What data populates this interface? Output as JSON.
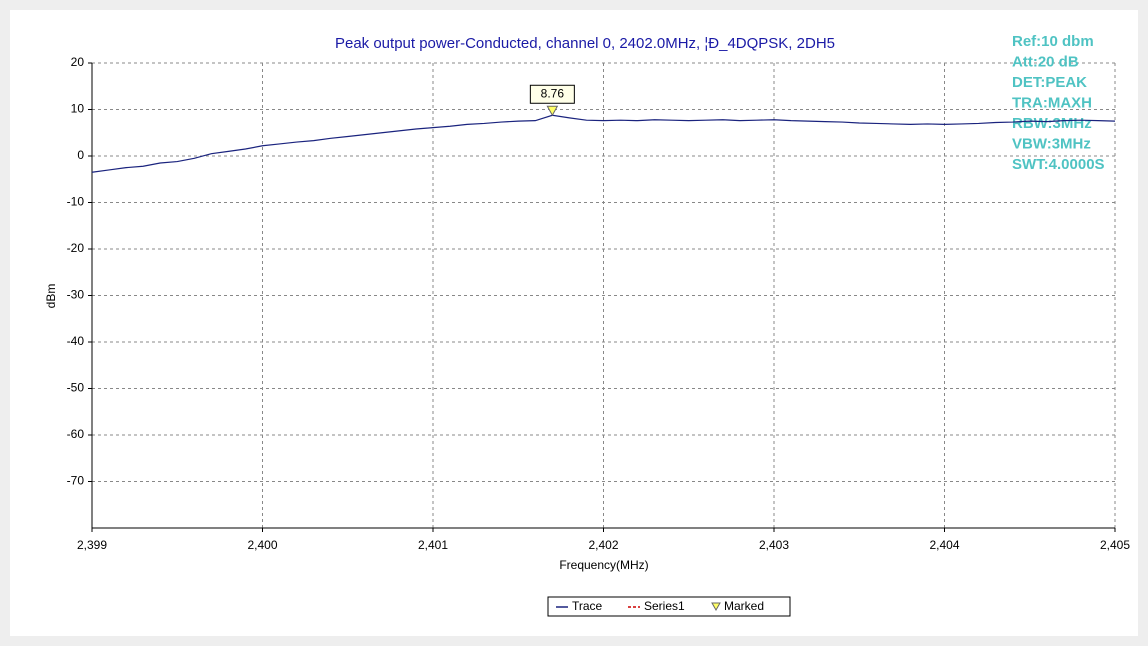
{
  "chart_data": {
    "type": "line",
    "title": "Peak output power-Conducted, channel 0, 2402.0MHz, ¦Ð_4DQPSK, 2DH5",
    "x_label": "Frequency(MHz)",
    "y_label": "dBm",
    "annotations": [
      "Ref:10 dbm",
      "Att:20 dB",
      "DET:PEAK",
      "TRA:MAXH",
      "RBW:3MHz",
      "VBW:3MHz",
      "SWT:4.0000S"
    ],
    "xlim": [
      2399,
      2405
    ],
    "xticks": [
      {
        "value": 2399,
        "label": "2,399"
      },
      {
        "value": 2400,
        "label": "2,400"
      },
      {
        "value": 2401,
        "label": "2,401"
      },
      {
        "value": 2402,
        "label": "2,402"
      },
      {
        "value": 2403,
        "label": "2,403"
      },
      {
        "value": 2404,
        "label": "2,404"
      },
      {
        "value": 2405,
        "label": "2,405"
      }
    ],
    "ylim": [
      -80,
      20
    ],
    "yticks": [
      20,
      10,
      0,
      -10,
      -20,
      -30,
      -40,
      -50,
      -60,
      -70
    ],
    "grid": true,
    "legend": "bottom",
    "series": [
      {
        "name": "Trace",
        "color": "#1a237e",
        "x": [
          2399.0,
          2399.1,
          2399.2,
          2399.3,
          2399.4,
          2399.5,
          2399.6,
          2399.7,
          2399.8,
          2399.9,
          2400.0,
          2400.1,
          2400.2,
          2400.3,
          2400.4,
          2400.5,
          2400.6,
          2400.7,
          2400.8,
          2400.9,
          2401.0,
          2401.1,
          2401.2,
          2401.3,
          2401.4,
          2401.5,
          2401.6,
          2401.7,
          2401.8,
          2401.9,
          2402.0,
          2402.1,
          2402.2,
          2402.3,
          2402.4,
          2402.5,
          2402.6,
          2402.7,
          2402.8,
          2402.9,
          2403.0,
          2403.1,
          2403.2,
          2403.3,
          2403.4,
          2403.5,
          2403.6,
          2403.7,
          2403.8,
          2403.9,
          2404.0,
          2404.1,
          2404.2,
          2404.3,
          2404.4,
          2404.5,
          2404.6,
          2404.7,
          2404.8,
          2404.9,
          2405.0
        ],
        "values": [
          -3.5,
          -3,
          -2.5,
          -2.2,
          -1.5,
          -1.2,
          -0.5,
          0.5,
          1.0,
          1.5,
          2.2,
          2.6,
          3.0,
          3.3,
          3.8,
          4.2,
          4.6,
          5.0,
          5.4,
          5.8,
          6.1,
          6.4,
          6.8,
          7.0,
          7.3,
          7.5,
          7.6,
          8.76,
          8.2,
          7.7,
          7.6,
          7.7,
          7.6,
          7.8,
          7.7,
          7.6,
          7.7,
          7.8,
          7.6,
          7.7,
          7.8,
          7.6,
          7.5,
          7.4,
          7.3,
          7.1,
          7.0,
          6.9,
          6.8,
          6.9,
          6.8,
          6.9,
          7.0,
          7.2,
          7.3,
          7.5,
          7.4,
          7.6,
          7.7,
          7.6,
          7.5
        ]
      },
      {
        "name": "Series1",
        "color": "#cc0000",
        "x": [],
        "values": []
      },
      {
        "name": "Marked",
        "color": "#ffff66",
        "x": [
          2401.7
        ],
        "values": [
          8.76
        ]
      }
    ]
  }
}
